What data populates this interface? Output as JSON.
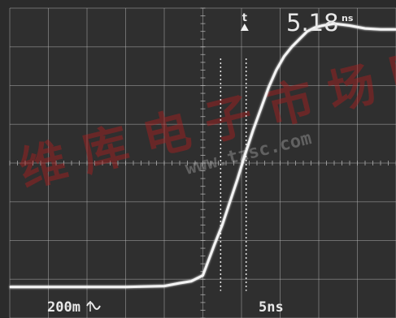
{
  "chart_data": {
    "type": "line",
    "title": "",
    "xlabel": "",
    "ylabel": "",
    "grid": true,
    "readout": {
      "value": "5.18",
      "unit": "ns"
    },
    "channel_scale": "200m",
    "time_scale": "5ns",
    "x_divisions": 10,
    "y_divisions": 8,
    "x_unit": "ns",
    "y_unit": "V",
    "xlim": [
      0,
      50
    ],
    "ylim": [
      -0.8,
      0.8
    ],
    "series": [
      {
        "x": [
          0,
          5,
          10,
          15,
          20,
          22,
          23.5,
          25,
          26.5,
          27.5,
          28.5,
          29.5,
          30.5,
          31.5,
          32.5,
          33.5,
          34.5,
          35.5,
          36.5,
          37.5,
          38.5,
          39.5,
          40.5,
          42,
          44,
          46,
          48,
          50
        ],
        "y": [
          -0.64,
          -0.64,
          -0.64,
          -0.64,
          -0.635,
          -0.62,
          -0.61,
          -0.58,
          -0.42,
          -0.32,
          -0.2,
          -0.08,
          0.05,
          0.17,
          0.28,
          0.39,
          0.48,
          0.55,
          0.6,
          0.64,
          0.68,
          0.7,
          0.71,
          0.72,
          0.71,
          0.695,
          0.69,
          0.69
        ]
      }
    ],
    "cursors": {
      "vertical_dotted": [
        27.3,
        30.6
      ],
      "trigger_marker_x": 30.4
    }
  },
  "watermark_text": "www.tzsc.com"
}
